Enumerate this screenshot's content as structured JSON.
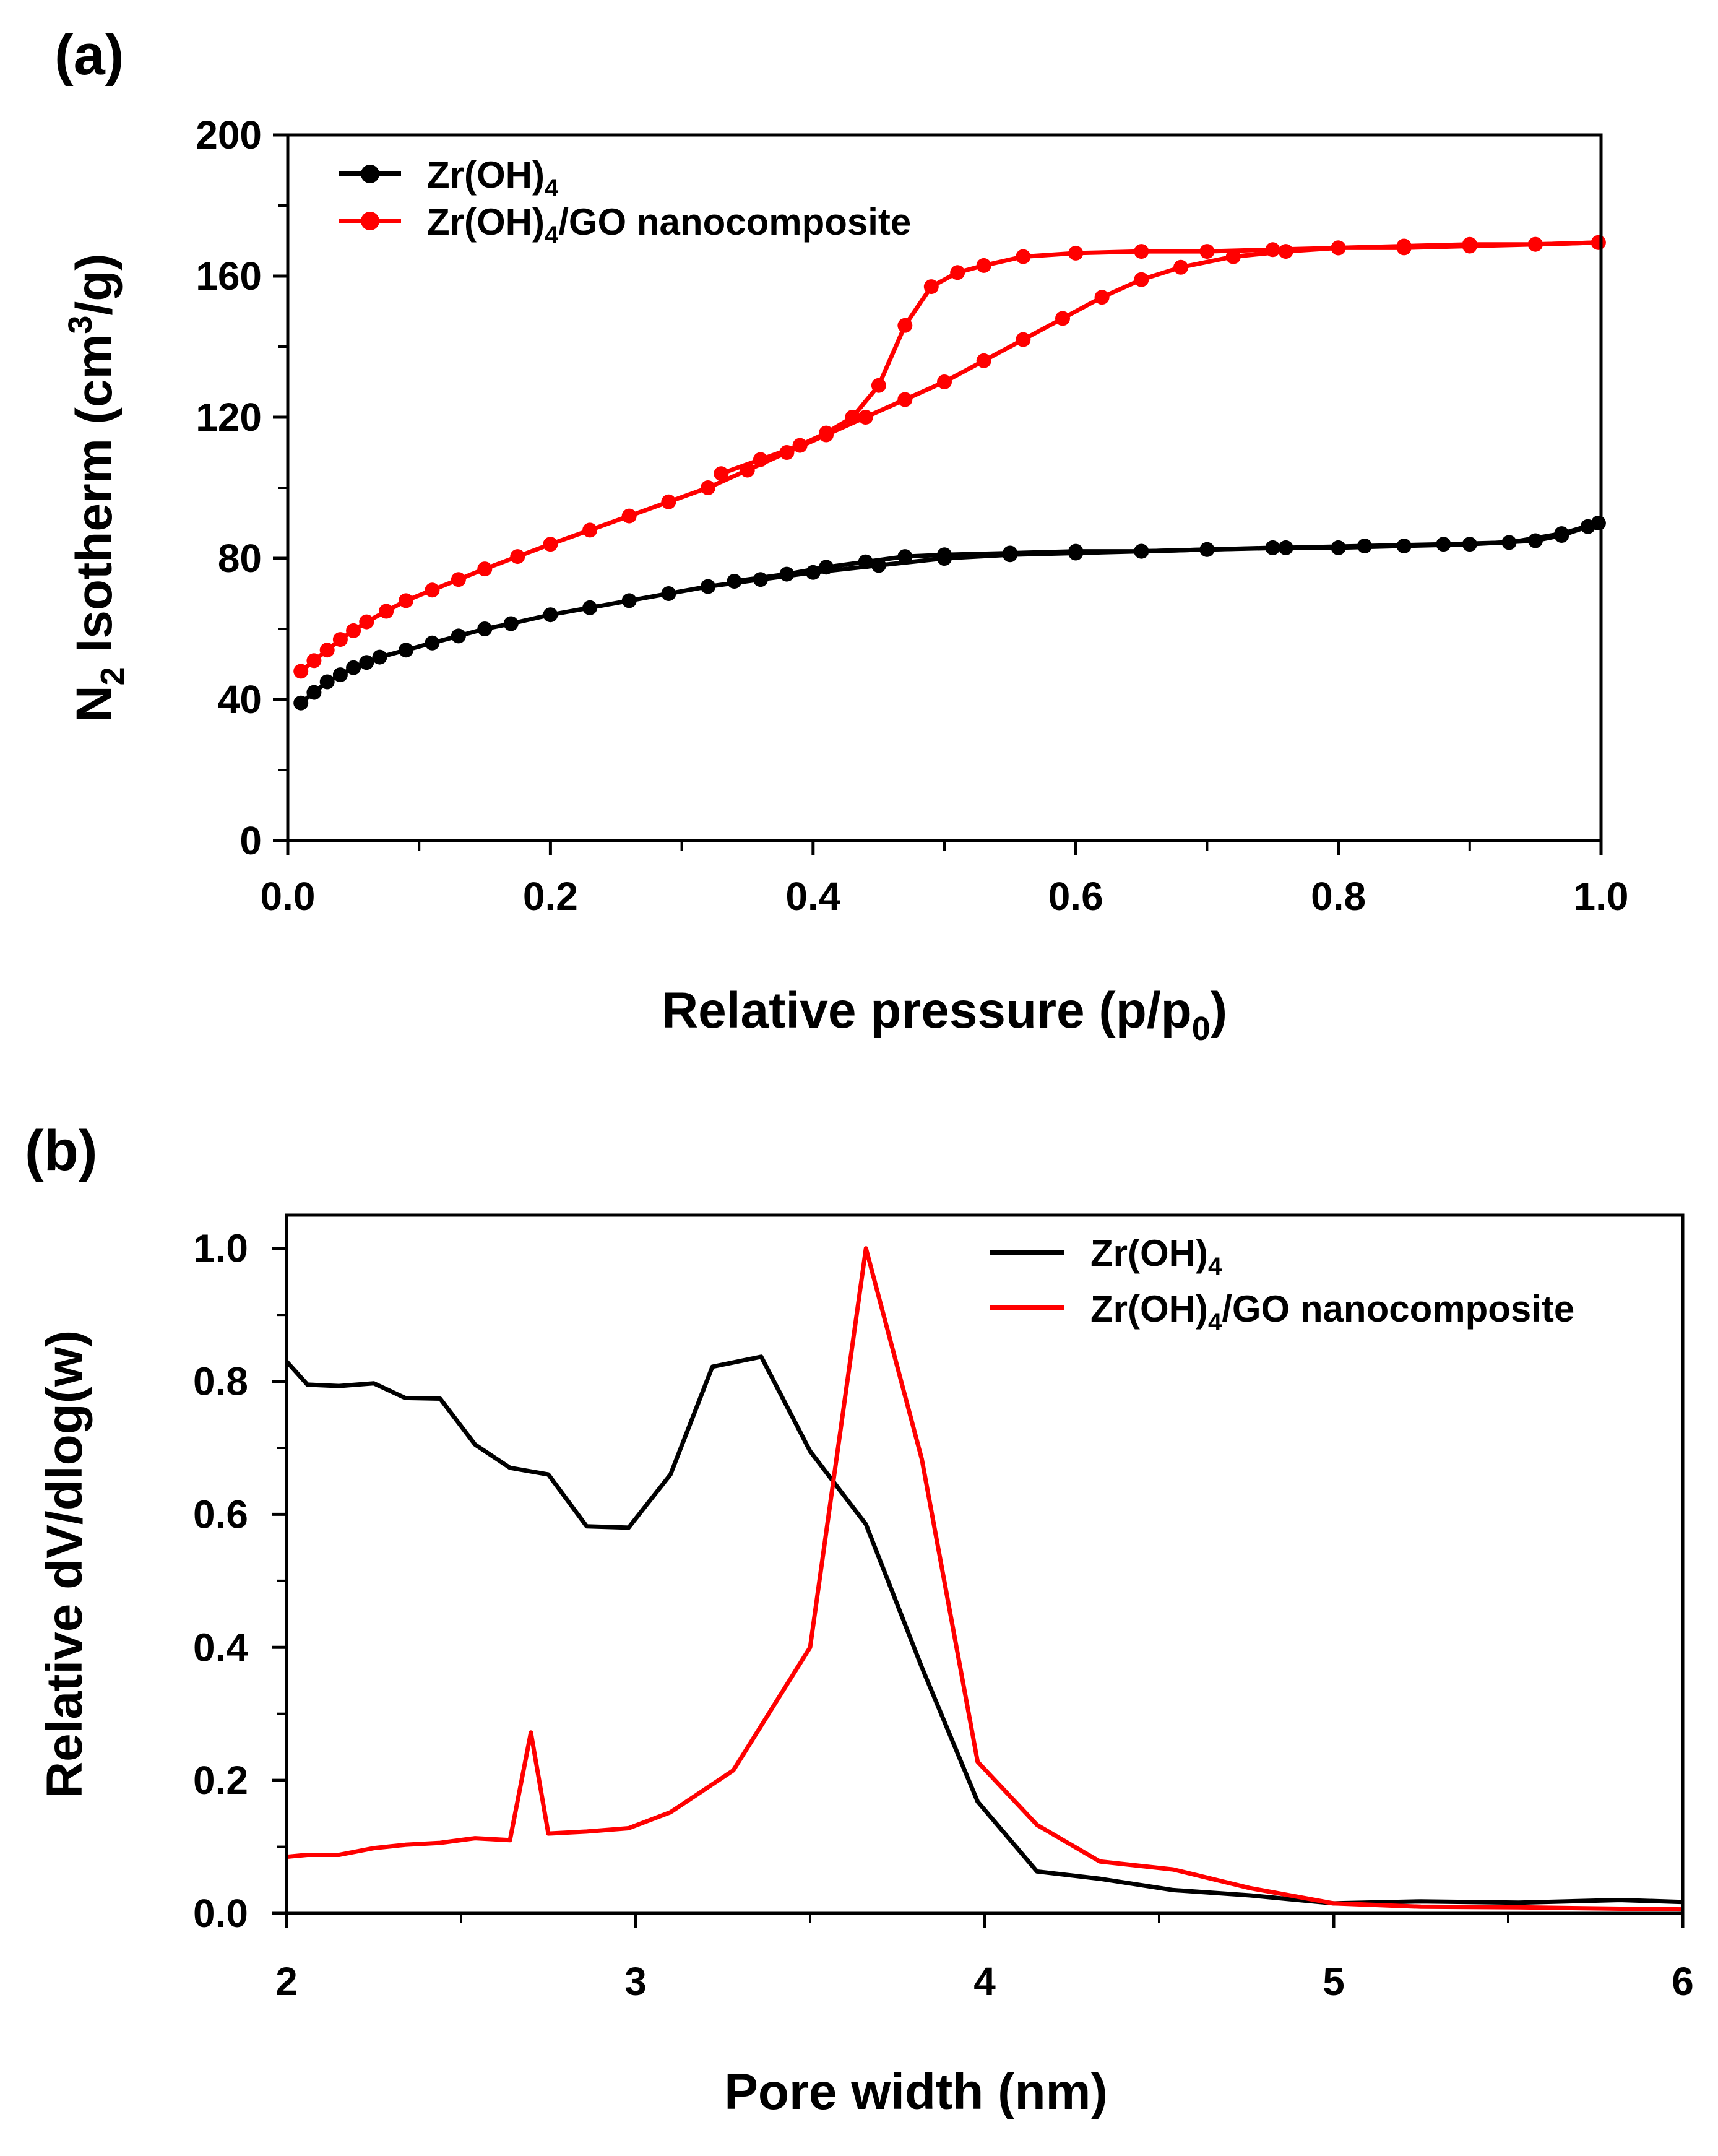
{
  "chart_data": [
    {
      "panel_label": "(a)",
      "type": "line",
      "title": "",
      "xlabel": "Relative pressure (p/p",
      "xlabel_sub": "0",
      "xlabel_end": ")",
      "ylabel_main": "N",
      "ylabel_sub": "2",
      "ylabel_mid": " Isotherm (cm",
      "ylabel_sup": "3",
      "ylabel_end": "/g)",
      "xlim": [
        0,
        1.0
      ],
      "ylim": [
        0,
        200
      ],
      "xticks": [
        "0.0",
        "0.2",
        "0.4",
        "0.6",
        "0.8",
        "1.0"
      ],
      "yticks": [
        "0",
        "40",
        "80",
        "120",
        "160",
        "200"
      ],
      "legend_position": "top-left",
      "series": [
        {
          "name": "Zr(OH)",
          "name_sub": "4",
          "name_rest": "",
          "color": "#000000",
          "markers": true,
          "adsorption": [
            [
              0.01,
              39
            ],
            [
              0.02,
              42
            ],
            [
              0.03,
              45
            ],
            [
              0.04,
              47
            ],
            [
              0.05,
              49
            ],
            [
              0.06,
              50.5
            ],
            [
              0.07,
              52
            ],
            [
              0.09,
              54
            ],
            [
              0.11,
              56
            ],
            [
              0.13,
              58
            ],
            [
              0.15,
              60
            ],
            [
              0.17,
              61.5
            ],
            [
              0.2,
              64
            ],
            [
              0.23,
              66
            ],
            [
              0.26,
              68
            ],
            [
              0.29,
              70
            ],
            [
              0.32,
              72
            ],
            [
              0.36,
              74
            ],
            [
              0.4,
              76
            ],
            [
              0.45,
              78
            ],
            [
              0.5,
              80
            ],
            [
              0.55,
              81
            ],
            [
              0.6,
              81.5
            ],
            [
              0.65,
              82
            ],
            [
              0.7,
              82.5
            ],
            [
              0.75,
              83
            ],
            [
              0.8,
              83
            ],
            [
              0.85,
              83.5
            ],
            [
              0.9,
              84
            ],
            [
              0.95,
              85
            ],
            [
              0.97,
              86.5
            ],
            [
              0.99,
              89
            ],
            [
              0.998,
              90
            ]
          ],
          "desorption": [
            [
              0.998,
              90
            ],
            [
              0.97,
              87
            ],
            [
              0.93,
              84.5
            ],
            [
              0.88,
              84
            ],
            [
              0.82,
              83.5
            ],
            [
              0.76,
              83
            ],
            [
              0.7,
              82.5
            ],
            [
              0.65,
              82
            ],
            [
              0.6,
              82
            ],
            [
              0.55,
              81.5
            ],
            [
              0.5,
              81
            ],
            [
              0.47,
              80.5
            ],
            [
              0.44,
              79
            ],
            [
              0.41,
              77.5
            ],
            [
              0.38,
              75.5
            ],
            [
              0.34,
              73.5
            ]
          ]
        },
        {
          "name": "Zr(OH)",
          "name_sub": "4",
          "name_rest": "/GO nanocomposite",
          "color": "#ff0000",
          "markers": true,
          "adsorption": [
            [
              0.01,
              48
            ],
            [
              0.02,
              51
            ],
            [
              0.03,
              54
            ],
            [
              0.04,
              57
            ],
            [
              0.05,
              59.5
            ],
            [
              0.06,
              62
            ],
            [
              0.075,
              65
            ],
            [
              0.09,
              68
            ],
            [
              0.11,
              71
            ],
            [
              0.13,
              74
            ],
            [
              0.15,
              77
            ],
            [
              0.175,
              80.5
            ],
            [
              0.2,
              84
            ],
            [
              0.23,
              88
            ],
            [
              0.26,
              92
            ],
            [
              0.29,
              96
            ],
            [
              0.32,
              100
            ],
            [
              0.35,
              105
            ],
            [
              0.38,
              110
            ],
            [
              0.41,
              115
            ],
            [
              0.44,
              120
            ],
            [
              0.47,
              125
            ],
            [
              0.5,
              130
            ],
            [
              0.53,
              136
            ],
            [
              0.56,
              142
            ],
            [
              0.59,
              148
            ],
            [
              0.62,
              154
            ],
            [
              0.65,
              159
            ],
            [
              0.68,
              162.5
            ],
            [
              0.72,
              165.5
            ],
            [
              0.76,
              167
            ],
            [
              0.8,
              168
            ],
            [
              0.85,
              168.5
            ],
            [
              0.9,
              169
            ],
            [
              0.95,
              169
            ],
            [
              0.998,
              169.5
            ]
          ],
          "desorption": [
            [
              0.998,
              169.5
            ],
            [
              0.95,
              169
            ],
            [
              0.9,
              168.5
            ],
            [
              0.85,
              168
            ],
            [
              0.8,
              168
            ],
            [
              0.75,
              167.5
            ],
            [
              0.7,
              167
            ],
            [
              0.65,
              167
            ],
            [
              0.6,
              166.5
            ],
            [
              0.56,
              165.5
            ],
            [
              0.53,
              163
            ],
            [
              0.51,
              161
            ],
            [
              0.49,
              157
            ],
            [
              0.47,
              146
            ],
            [
              0.45,
              129
            ],
            [
              0.43,
              120
            ],
            [
              0.41,
              115.5
            ],
            [
              0.39,
              112
            ],
            [
              0.36,
              108
            ],
            [
              0.33,
              104
            ]
          ]
        }
      ]
    },
    {
      "panel_label": "(b)",
      "type": "line",
      "title": "",
      "xlabel": "Pore width (nm)",
      "ylabel": "Relative dV/dlog(w)",
      "xlim": [
        2,
        6
      ],
      "ylim": [
        0,
        1.05
      ],
      "xticks": [
        "2",
        "3",
        "4",
        "5",
        "6"
      ],
      "yticks": [
        "0.0",
        "0.2",
        "0.4",
        "0.6",
        "0.8",
        "1.0"
      ],
      "legend_position": "top-right",
      "series": [
        {
          "name": "Zr(OH)",
          "name_sub": "4",
          "name_rest": "",
          "color": "#000000",
          "markers": false,
          "points": [
            [
              2.0,
              0.83
            ],
            [
              2.06,
              0.795
            ],
            [
              2.15,
              0.793
            ],
            [
              2.25,
              0.797
            ],
            [
              2.34,
              0.775
            ],
            [
              2.44,
              0.774
            ],
            [
              2.54,
              0.705
            ],
            [
              2.64,
              0.67
            ],
            [
              2.75,
              0.66
            ],
            [
              2.86,
              0.582
            ],
            [
              2.98,
              0.58
            ],
            [
              3.1,
              0.66
            ],
            [
              3.22,
              0.822
            ],
            [
              3.36,
              0.837
            ],
            [
              3.5,
              0.695
            ],
            [
              3.66,
              0.585
            ],
            [
              3.82,
              0.37
            ],
            [
              3.98,
              0.168
            ],
            [
              4.15,
              0.063
            ],
            [
              4.33,
              0.052
            ],
            [
              4.54,
              0.035
            ],
            [
              4.76,
              0.027
            ],
            [
              5.0,
              0.015
            ],
            [
              5.25,
              0.018
            ],
            [
              5.53,
              0.016
            ],
            [
              5.82,
              0.02
            ],
            [
              6.0,
              0.017
            ]
          ]
        },
        {
          "name": "Zr(OH)",
          "name_sub": "4",
          "name_rest": "/GO nanocomposite",
          "color": "#ff0000",
          "markers": false,
          "points": [
            [
              2.0,
              0.085
            ],
            [
              2.06,
              0.088
            ],
            [
              2.15,
              0.088
            ],
            [
              2.25,
              0.098
            ],
            [
              2.34,
              0.103
            ],
            [
              2.44,
              0.106
            ],
            [
              2.54,
              0.113
            ],
            [
              2.64,
              0.11
            ],
            [
              2.7,
              0.272
            ],
            [
              2.75,
              0.12
            ],
            [
              2.86,
              0.123
            ],
            [
              2.98,
              0.128
            ],
            [
              3.1,
              0.152
            ],
            [
              3.28,
              0.215
            ],
            [
              3.5,
              0.4
            ],
            [
              3.66,
              1.0
            ],
            [
              3.82,
              0.683
            ],
            [
              3.98,
              0.228
            ],
            [
              4.15,
              0.133
            ],
            [
              4.33,
              0.078
            ],
            [
              4.54,
              0.066
            ],
            [
              4.76,
              0.038
            ],
            [
              5.0,
              0.015
            ],
            [
              5.25,
              0.01
            ],
            [
              5.53,
              0.009
            ],
            [
              5.82,
              0.007
            ],
            [
              6.0,
              0.006
            ]
          ]
        }
      ]
    }
  ]
}
